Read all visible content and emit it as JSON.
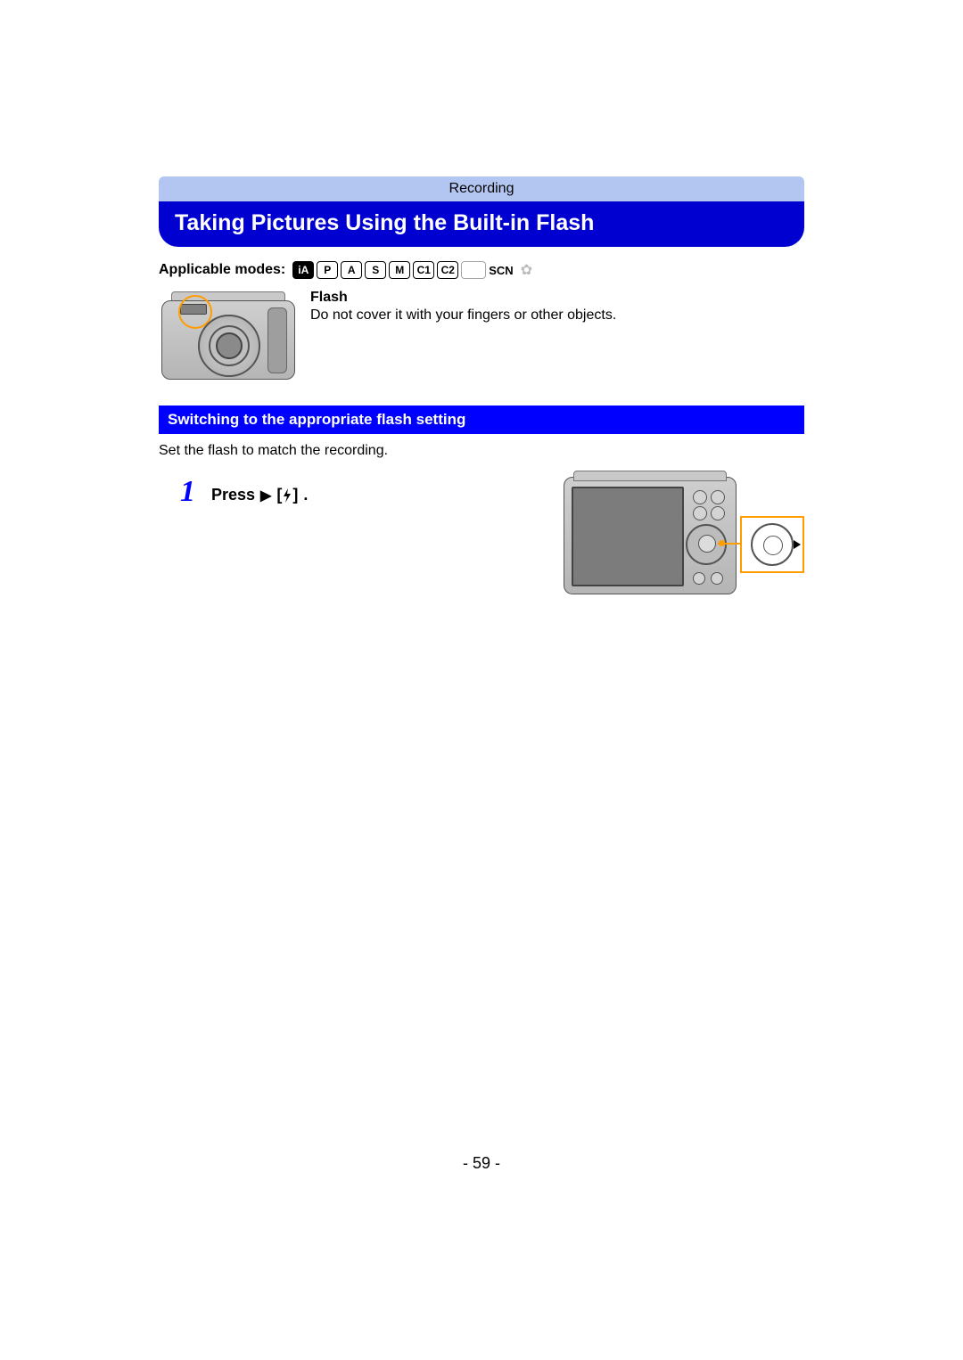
{
  "colors": {
    "breadcrumb_bg": "#b3c6f2",
    "title_bg": "#0000d0",
    "subhead_bg": "#0000ff",
    "highlight": "#ff9c00",
    "step_number": "#0000ff"
  },
  "breadcrumb": "Recording",
  "title": "Taking Pictures Using the Built-in Flash",
  "applicable": {
    "label": "Applicable modes:",
    "modes": [
      {
        "text": "iA",
        "filled": true,
        "active": true
      },
      {
        "text": "P",
        "filled": false,
        "active": true
      },
      {
        "text": "A",
        "filled": false,
        "active": true
      },
      {
        "text": "S",
        "filled": false,
        "active": true
      },
      {
        "text": "M",
        "filled": false,
        "active": true
      },
      {
        "text": "C1",
        "filled": false,
        "active": true
      },
      {
        "text": "C2",
        "filled": false,
        "active": true
      },
      {
        "text": "",
        "filled": false,
        "active": false
      },
      {
        "text": "SCN",
        "filled": false,
        "active": true,
        "noBox": true
      }
    ]
  },
  "flash": {
    "heading": "Flash",
    "body": "Do not cover it with your fingers or other objects."
  },
  "subhead": "Switching to the appropriate flash setting",
  "subcaption": "Set the flash to match the recording.",
  "step1": {
    "number": "1",
    "prefix": "Press",
    "arrow": "▶",
    "bracket_content": "⚡",
    "suffix": "."
  },
  "page_number": "- 59 -"
}
